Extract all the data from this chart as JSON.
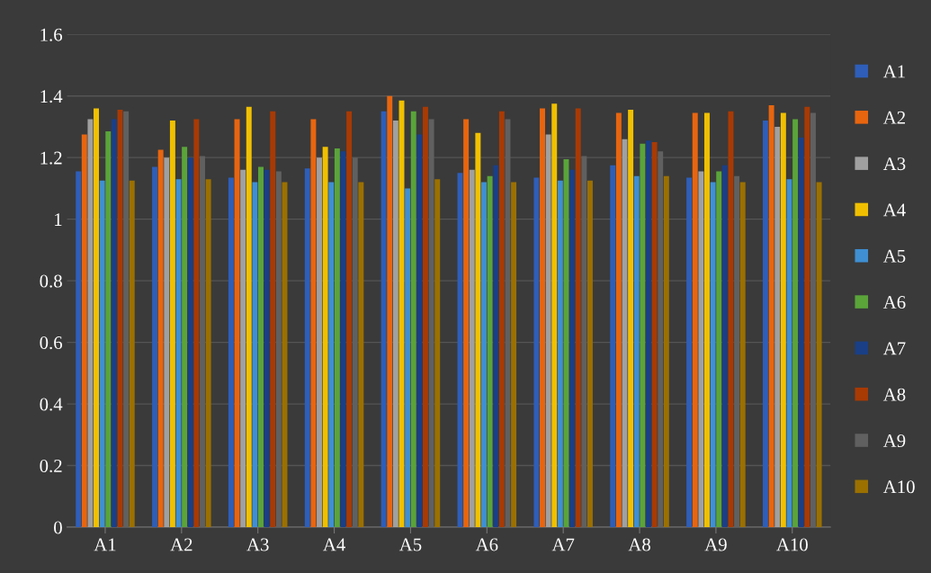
{
  "chart_data": {
    "type": "bar",
    "categories": [
      "A1",
      "A2",
      "A3",
      "A4",
      "A5",
      "A6",
      "A7",
      "A8",
      "A9",
      "A10"
    ],
    "ylim": [
      0,
      1.6
    ],
    "yticks": [
      0,
      0.2,
      0.4,
      0.6,
      0.8,
      1,
      1.2,
      1.4,
      1.6
    ],
    "grid": "y",
    "legend": "right",
    "series": [
      {
        "name": "A1",
        "color": "#2e5eb8",
        "values": [
          1.155,
          1.17,
          1.135,
          1.165,
          1.35,
          1.15,
          1.135,
          1.175,
          1.135,
          1.32
        ]
      },
      {
        "name": "A2",
        "color": "#e8650f",
        "values": [
          1.275,
          1.225,
          1.325,
          1.325,
          1.4,
          1.325,
          1.36,
          1.345,
          1.345,
          1.37
        ]
      },
      {
        "name": "A3",
        "color": "#a0a0a0",
        "values": [
          1.325,
          1.2,
          1.16,
          1.2,
          1.32,
          1.16,
          1.275,
          1.26,
          1.155,
          1.3
        ]
      },
      {
        "name": "A4",
        "color": "#f0c000",
        "values": [
          1.36,
          1.32,
          1.365,
          1.235,
          1.385,
          1.28,
          1.375,
          1.355,
          1.345,
          1.345
        ]
      },
      {
        "name": "A5",
        "color": "#3f8fd2",
        "values": [
          1.125,
          1.13,
          1.12,
          1.12,
          1.1,
          1.12,
          1.125,
          1.14,
          1.12,
          1.13
        ]
      },
      {
        "name": "A6",
        "color": "#5aa43a",
        "values": [
          1.285,
          1.235,
          1.17,
          1.23,
          1.35,
          1.14,
          1.195,
          1.245,
          1.155,
          1.325
        ]
      },
      {
        "name": "A7",
        "color": "#1a3f86",
        "values": [
          1.325,
          1.2,
          1.16,
          1.22,
          1.275,
          1.175,
          1.16,
          1.255,
          1.175,
          1.265
        ]
      },
      {
        "name": "A8",
        "color": "#a83a04",
        "values": [
          1.355,
          1.325,
          1.35,
          1.35,
          1.365,
          1.35,
          1.36,
          1.25,
          1.35,
          1.365
        ]
      },
      {
        "name": "A9",
        "color": "#606060",
        "values": [
          1.35,
          1.205,
          1.155,
          1.2,
          1.325,
          1.325,
          1.205,
          1.22,
          1.14,
          1.345
        ]
      },
      {
        "name": "A10",
        "color": "#9b7000",
        "values": [
          1.125,
          1.13,
          1.12,
          1.12,
          1.13,
          1.12,
          1.125,
          1.14,
          1.12,
          1.12
        ]
      }
    ]
  }
}
